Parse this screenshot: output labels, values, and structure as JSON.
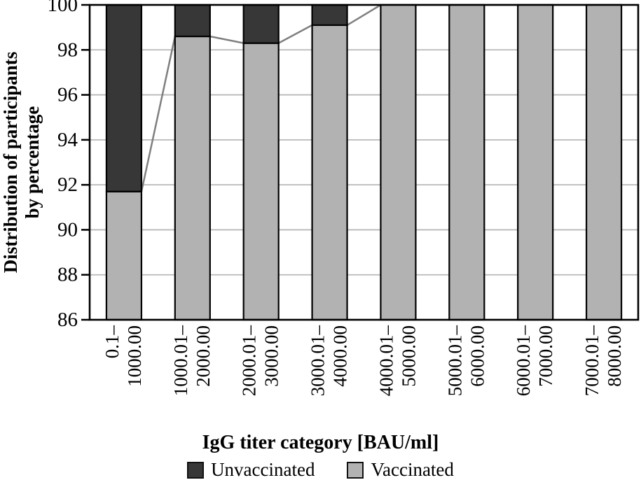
{
  "chart_data": {
    "type": "bar",
    "stacked": true,
    "title": "",
    "xlabel": "IgG titer category [BAU/ml]",
    "ylabel": "Distribution of participants by percentage",
    "ylabel_lines": [
      "Distribution of participants",
      "by percentage"
    ],
    "categories": [
      [
        "0.1–",
        "1000.00"
      ],
      [
        "1000.01–",
        "2000.00"
      ],
      [
        "2000.01–",
        "3000.00"
      ],
      [
        "3000.01–",
        "4000.00"
      ],
      [
        "4000.01–",
        "5000.00"
      ],
      [
        "5000.01–",
        "6000.00"
      ],
      [
        "6000.01–",
        "7000.00"
      ],
      [
        "7000.01–",
        "8000.00"
      ]
    ],
    "series": [
      {
        "name": "Vaccinated",
        "color": "#b2b2b2",
        "values": [
          91.7,
          98.6,
          98.3,
          99.1,
          100,
          100,
          100,
          100
        ]
      },
      {
        "name": "Unvaccinated",
        "color": "#373737",
        "values": [
          8.3,
          1.4,
          1.7,
          0.9,
          0,
          0,
          0,
          0
        ]
      }
    ],
    "line_overlay": {
      "follows": "Vaccinated",
      "color": "#7f7f7f"
    },
    "ylim": [
      86,
      100
    ],
    "yticks": [
      86,
      88,
      90,
      92,
      94,
      96,
      98,
      100
    ],
    "grid": "horizontal",
    "grid_color": "#b9b9b9",
    "bar_border_color": "#000000",
    "legend_position": "bottom",
    "legend": [
      {
        "label": "Unvaccinated",
        "color": "#373737"
      },
      {
        "label": "Vaccinated",
        "color": "#b2b2b2"
      }
    ]
  }
}
